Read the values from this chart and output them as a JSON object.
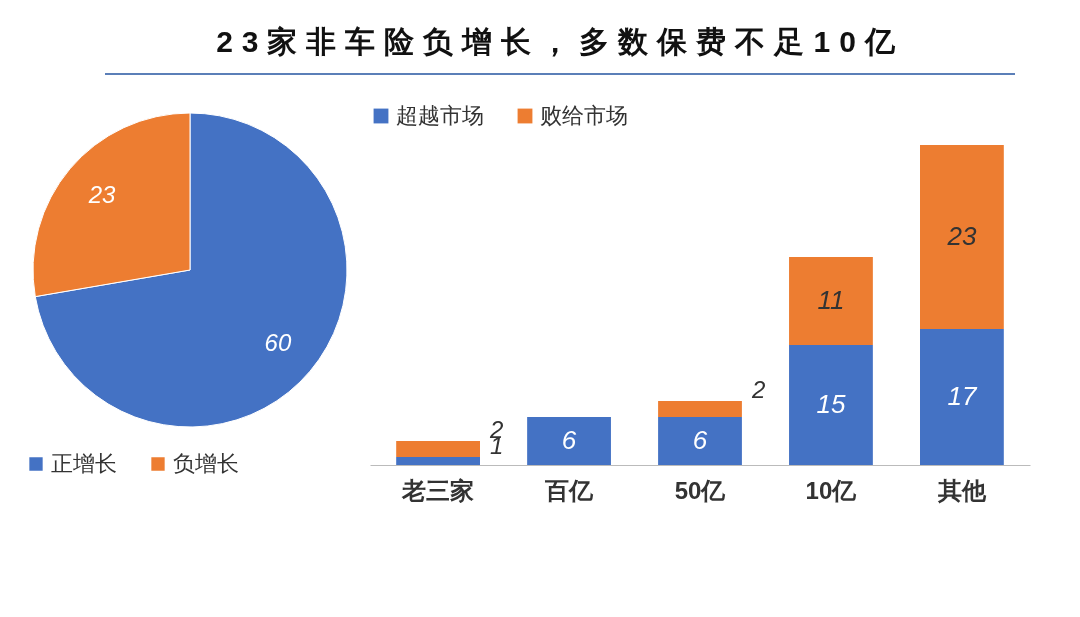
{
  "chart_data": [
    {
      "type": "pie",
      "title": "23家非车险负增长，多数保费不足10亿",
      "categories": [
        "正增长",
        "负增长"
      ],
      "values": [
        60,
        23
      ],
      "colors": [
        "#4472c4",
        "#ed7d31"
      ],
      "data_labels": true,
      "legend": "bottom"
    },
    {
      "type": "bar",
      "stacked": true,
      "categories": [
        "老三家",
        "百亿",
        "50亿",
        "10亿",
        "其他"
      ],
      "series": [
        {
          "name": "超越市场",
          "color": "#4472c4",
          "values": [
            1,
            6,
            6,
            15,
            17
          ]
        },
        {
          "name": "败给市场",
          "color": "#ed7d31",
          "values": [
            2,
            null,
            2,
            11,
            23
          ]
        }
      ],
      "data_labels": true,
      "legend": "top"
    }
  ]
}
